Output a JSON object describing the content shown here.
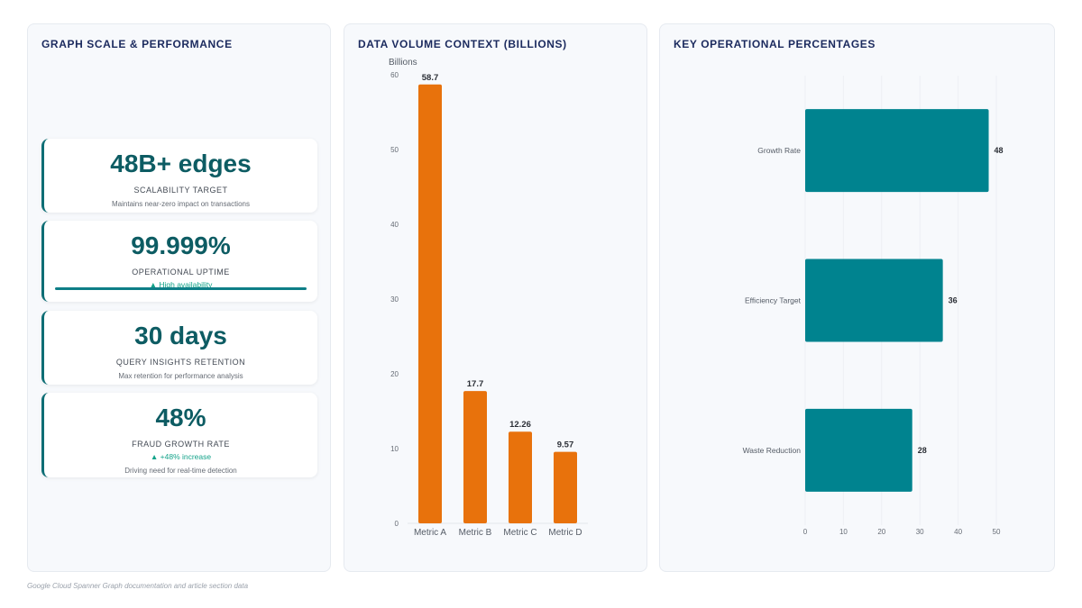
{
  "panels": {
    "kpis_title": "GRAPH SCALE & PERFORMANCE",
    "volume_title": "DATA VOLUME CONTEXT (BILLIONS)",
    "percent_title": "KEY OPERATIONAL PERCENTAGES"
  },
  "kpis": [
    {
      "value": "48B+ edges",
      "label": "SCALABILITY TARGET",
      "desc": "Maintains near-zero impact on transactions"
    },
    {
      "value": "99.999%",
      "label": "OPERATIONAL UPTIME",
      "trend": "▲ High availability",
      "progress": 1.0
    },
    {
      "value": "30 days",
      "label": "QUERY INSIGHTS RETENTION",
      "desc": "Max retention for performance analysis"
    },
    {
      "value": "48%",
      "label": "FRAUD GROWTH RATE",
      "trend": "▲ +48% increase",
      "desc": "Driving need for real-time detection"
    }
  ],
  "colors": {
    "accent": "#0e7e87",
    "bar_orange": "#e8720c",
    "bar_teal": "#00838f",
    "kpi_value": "#0d5c63",
    "trend_green": "#14a38a"
  },
  "chart_data": [
    {
      "type": "bar",
      "orientation": "vertical",
      "title": "DATA VOLUME CONTEXT (BILLIONS)",
      "ylabel": "Billions",
      "categories": [
        "Metric A",
        "Metric B",
        "Metric C",
        "Metric D"
      ],
      "values": [
        58.7,
        17.7,
        12.26,
        9.57
      ],
      "value_labels": [
        "58.7",
        "17.7",
        "12.26",
        "9.57"
      ],
      "ylim": [
        0,
        60
      ],
      "yticks": [
        "0",
        "10",
        "20",
        "30",
        "40",
        "50",
        "60"
      ],
      "grid": false
    },
    {
      "type": "bar",
      "orientation": "horizontal",
      "title": "KEY OPERATIONAL PERCENTAGES",
      "categories": [
        "Growth Rate",
        "Efficiency Target",
        "Waste Reduction"
      ],
      "values": [
        48,
        36,
        28
      ],
      "value_labels": [
        "48",
        "36",
        "28"
      ],
      "xlim": [
        0,
        50
      ],
      "xticks": [
        "0",
        "10",
        "20",
        "30",
        "40",
        "50"
      ],
      "grid": true
    }
  ],
  "source": "Google Cloud Spanner Graph documentation and article section data"
}
